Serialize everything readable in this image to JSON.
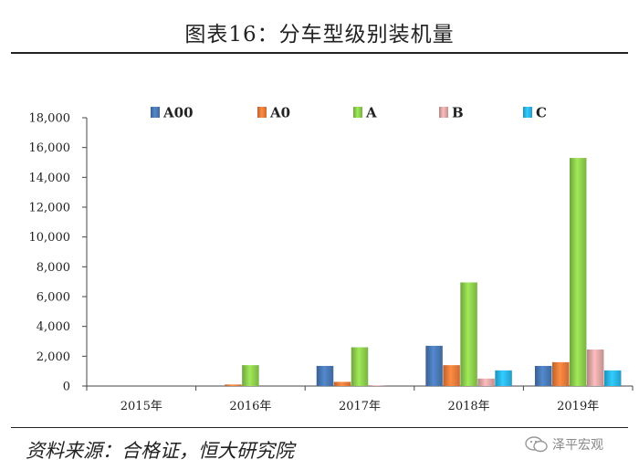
{
  "header": {
    "title": "图表16：分车型级别装机量"
  },
  "footer": {
    "source": "资料来源：合格证，恒大研究院",
    "watermark": "泽平宏观"
  },
  "colors": {
    "A00": "#4a7ab8",
    "A0": "#ee7d3b",
    "A": "#8fd14f",
    "B": "#e3a9a9",
    "C": "#2bb8ec"
  },
  "chart_data": {
    "type": "bar",
    "categories": [
      "2015年",
      "2016年",
      "2017年",
      "2018年",
      "2019年"
    ],
    "series": [
      {
        "name": "A00",
        "values": [
          0,
          0,
          1350,
          2700,
          1350
        ]
      },
      {
        "name": "A0",
        "values": [
          0,
          100,
          280,
          1400,
          1600
        ]
      },
      {
        "name": "A",
        "values": [
          0,
          1400,
          2600,
          6950,
          15300
        ]
      },
      {
        "name": "B",
        "values": [
          0,
          0,
          50,
          500,
          2450
        ]
      },
      {
        "name": "C",
        "values": [
          0,
          0,
          0,
          1050,
          1050
        ]
      }
    ],
    "ylim": [
      0,
      18000
    ],
    "yticks": [
      "0",
      "2,000",
      "4,000",
      "6,000",
      "8,000",
      "10,000",
      "12,000",
      "14,000",
      "16,000",
      "18,000"
    ],
    "legend_position": "top",
    "grid": false
  }
}
